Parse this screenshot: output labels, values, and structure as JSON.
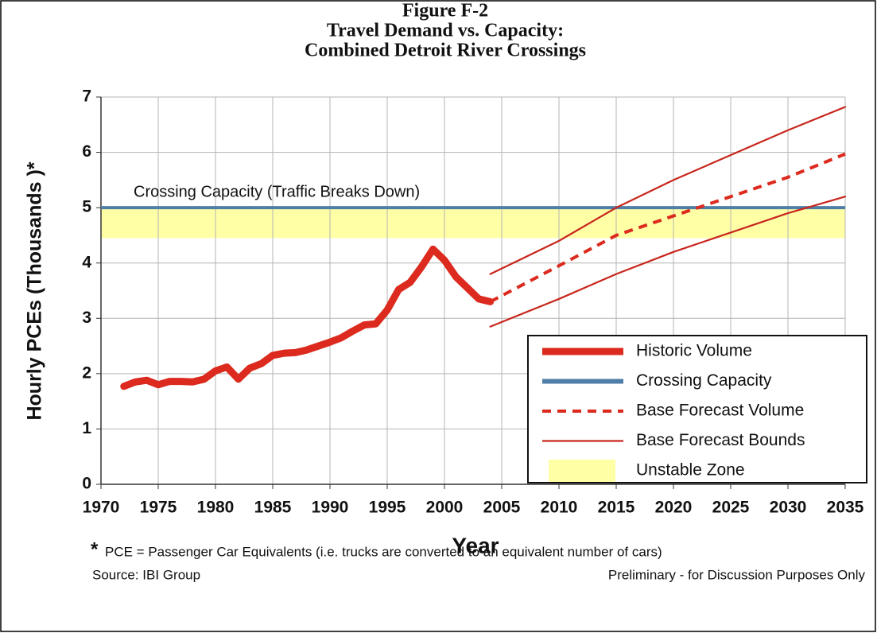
{
  "chart_data": {
    "type": "line",
    "title": [
      "Figure F-2",
      "Travel Demand vs. Capacity:",
      "Combined Detroit River Crossings"
    ],
    "xlabel": "Year",
    "ylabel": "Hourly PCEs (Thousands )*",
    "annotation": "Crossing Capacity (Traffic Breaks Down)",
    "footnote_mark": "*",
    "footnote": "PCE = Passenger Car Equivalents (i.e. trucks are converted to an equivalent number of cars)",
    "source": "Source: IBI Group",
    "disclaimer": "Preliminary - for Discussion Purposes Only",
    "xlim": [
      1970,
      2035
    ],
    "xticks": [
      1970,
      1975,
      1980,
      1985,
      1990,
      1995,
      2000,
      2005,
      2010,
      2015,
      2020,
      2025,
      2030,
      2035
    ],
    "ylim": [
      0,
      7
    ],
    "yticks": [
      0,
      1,
      2,
      3,
      4,
      5,
      6,
      7
    ],
    "grid": true,
    "legend": "lower right",
    "series": [
      {
        "name": "Historic Volume",
        "kind": "line",
        "color": "#dc2a1e",
        "width": 9,
        "x": [
          1972,
          1973,
          1974,
          1975,
          1976,
          1977,
          1978,
          1979,
          1980,
          1981,
          1982,
          1983,
          1984,
          1985,
          1986,
          1987,
          1988,
          1989,
          1990,
          1991,
          1992,
          1993,
          1994,
          1995,
          1996,
          1997,
          1998,
          1999,
          2000,
          2001,
          2002,
          2003,
          2004
        ],
        "values": [
          1.77,
          1.85,
          1.88,
          1.8,
          1.86,
          1.86,
          1.85,
          1.9,
          2.05,
          2.12,
          1.9,
          2.1,
          2.18,
          2.33,
          2.37,
          2.38,
          2.43,
          2.5,
          2.57,
          2.65,
          2.77,
          2.88,
          2.9,
          3.15,
          3.52,
          3.65,
          3.93,
          4.25,
          4.05,
          3.75,
          3.55,
          3.35,
          3.3
        ]
      },
      {
        "name": "Crossing Capacity",
        "kind": "hline",
        "color": "#4f7fa8",
        "value": 5
      },
      {
        "name": "Base Forecast Volume",
        "kind": "line",
        "color": "#dc2a1e",
        "width": 4,
        "dashed": true,
        "x": [
          2004,
          2010,
          2015,
          2020,
          2025,
          2030,
          2035
        ],
        "values": [
          3.3,
          3.95,
          4.5,
          4.85,
          5.2,
          5.55,
          5.97
        ]
      },
      {
        "name": "Base Forecast Bounds",
        "kind": "range",
        "color": "#c8261c",
        "x": [
          2004,
          2010,
          2015,
          2020,
          2025,
          2030,
          2035
        ],
        "upper": [
          3.8,
          4.4,
          5.0,
          5.5,
          5.95,
          6.4,
          6.82
        ],
        "lower": [
          2.85,
          3.35,
          3.8,
          4.2,
          4.55,
          4.9,
          5.2
        ]
      },
      {
        "name": "Unstable Zone",
        "kind": "band",
        "color": "#ffffa6",
        "from": 4.45,
        "to": 5
      }
    ]
  }
}
